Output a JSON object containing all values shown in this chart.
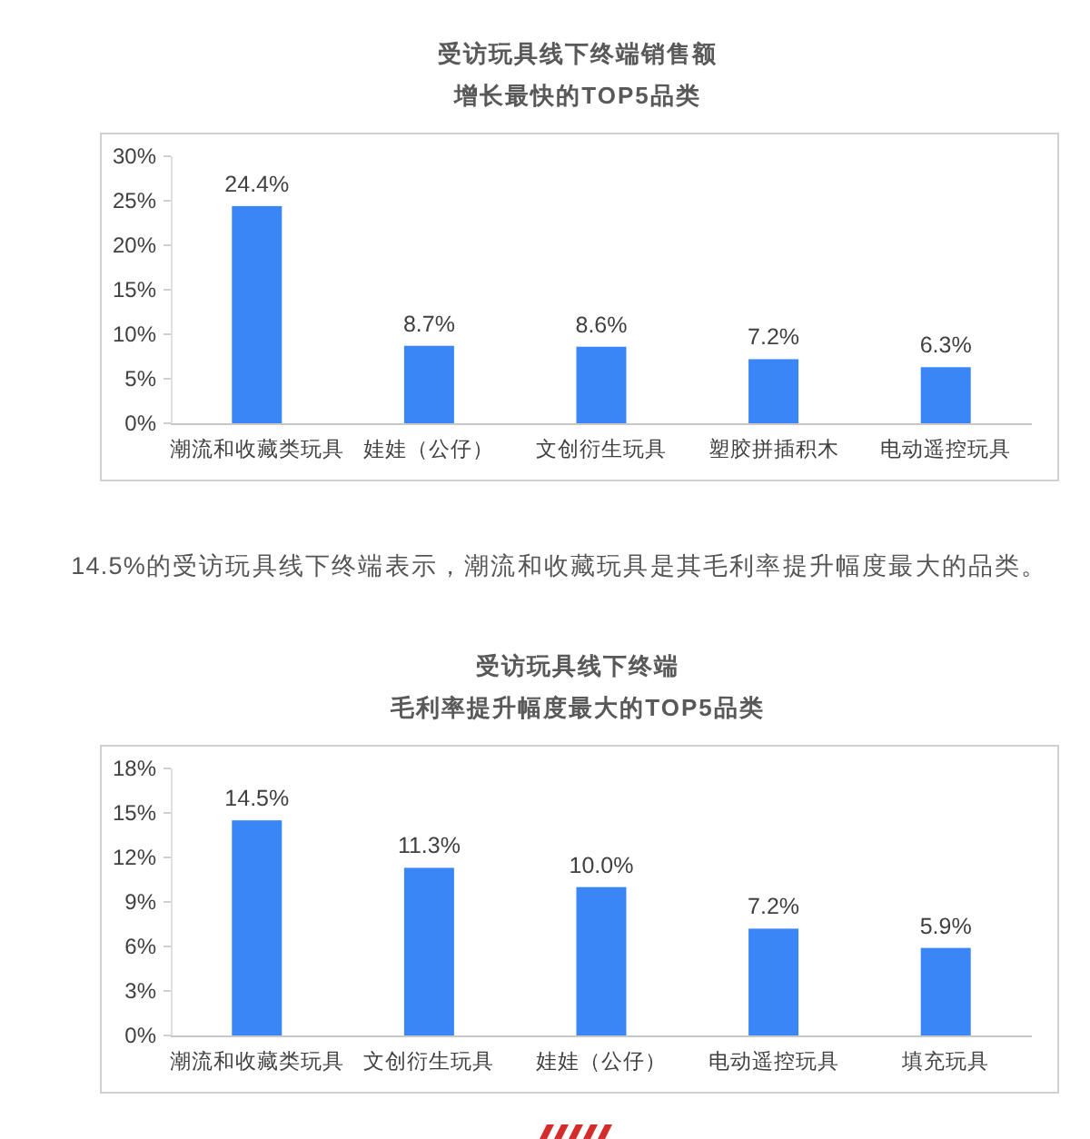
{
  "chart_data": [
    {
      "type": "bar",
      "title": "受访玩具线下终端销售额",
      "subtitle": "增长最快的TOP5品类",
      "categories": [
        "潮流和收藏类玩具",
        "娃娃（公仔）",
        "文创衍生玩具",
        "塑胶拼插积木",
        "电动遥控玩具"
      ],
      "values": [
        24.4,
        8.7,
        8.6,
        7.2,
        6.3
      ],
      "value_labels": [
        "24.4%",
        "8.7%",
        "8.6%",
        "7.2%",
        "6.3%"
      ],
      "color": "#3b86f6",
      "ylim": [
        0,
        30
      ],
      "yticks": [
        {
          "value": 0,
          "label": "0%"
        },
        {
          "value": 5,
          "label": "5%"
        },
        {
          "value": 10,
          "label": "10%"
        },
        {
          "value": 15,
          "label": "15%"
        },
        {
          "value": 20,
          "label": "20%"
        },
        {
          "value": 25,
          "label": "25%"
        },
        {
          "value": 30,
          "label": "30%"
        }
      ]
    },
    {
      "type": "other",
      "annotations": [
        "14.5%的受访玩具线下终端表示，潮流和收藏玩具是其毛利率提升幅度最大的品类。"
      ]
    },
    {
      "type": "bar",
      "title": "受访玩具线下终端",
      "subtitle": "毛利率提升幅度最大的TOP5品类",
      "categories": [
        "潮流和收藏类玩具",
        "文创衍生玩具",
        "娃娃（公仔）",
        "电动遥控玩具",
        "填充玩具"
      ],
      "values": [
        14.5,
        11.3,
        10.0,
        7.2,
        5.9
      ],
      "value_labels": [
        "14.5%",
        "11.3%",
        "10.0%",
        "7.2%",
        "5.9%"
      ],
      "color": "#3b86f6",
      "ylim": [
        0,
        18
      ],
      "yticks": [
        {
          "value": 0,
          "label": "0%"
        },
        {
          "value": 3,
          "label": "3%"
        },
        {
          "value": 6,
          "label": "6%"
        },
        {
          "value": 9,
          "label": "9%"
        },
        {
          "value": 12,
          "label": "12%"
        },
        {
          "value": 15,
          "label": "15%"
        },
        {
          "value": 18,
          "label": "18%"
        }
      ]
    }
  ]
}
